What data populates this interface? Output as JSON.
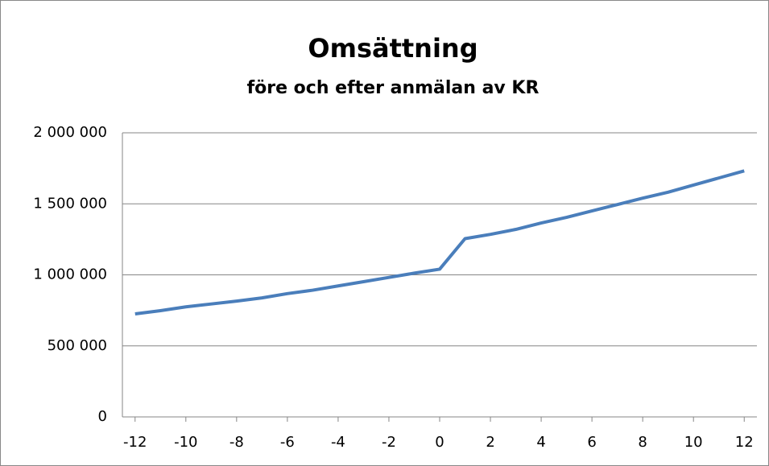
{
  "chart_data": {
    "type": "line",
    "title": "Omsättning",
    "subtitle": "före och efter anmälan av KR",
    "x": [
      -12,
      -11,
      -10,
      -9,
      -8,
      -7,
      -6,
      -5,
      -4,
      -3,
      -2,
      -1,
      0,
      1,
      2,
      3,
      4,
      5,
      6,
      7,
      8,
      9,
      10,
      11,
      12
    ],
    "series": [
      {
        "color": "#4a7ebb",
        "values": [
          725000,
          748000,
          775000,
          795000,
          815000,
          838000,
          868000,
          892000,
          922000,
          952000,
          982000,
          1012000,
          1040000,
          1255000,
          1285000,
          1320000,
          1365000,
          1405000,
          1450000,
          1495000,
          1540000,
          1582000,
          1632000,
          1682000,
          1732000
        ]
      }
    ],
    "xlim": [
      -12.5,
      12.5
    ],
    "xticks": [
      -12,
      -10,
      -8,
      -6,
      -4,
      -2,
      0,
      2,
      4,
      6,
      8,
      10,
      12
    ],
    "ylim": [
      0,
      2000000
    ],
    "yticks": [
      0,
      {
        "value": 500000,
        "label": "500 000"
      },
      {
        "value": 1000000,
        "label": "1 000 000"
      },
      {
        "value": 1500000,
        "label": "1 500 000"
      },
      {
        "value": 2000000,
        "label": "2 000 000"
      }
    ],
    "grid": true
  }
}
